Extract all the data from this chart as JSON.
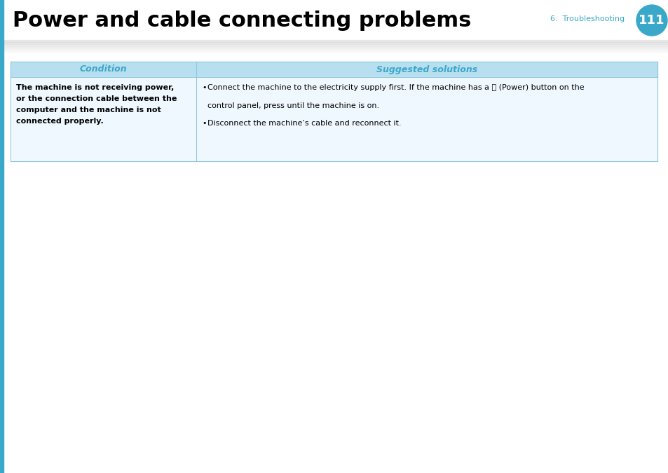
{
  "title": "Power and cable connecting problems",
  "page_number": "111",
  "section": "6.  Troubleshooting",
  "left_bar_color": "#3aa8c8",
  "title_color": "#000000",
  "section_color": "#3aa8c8",
  "circle_color": "#3aa8c8",
  "table_header_bg": "#b8dff0",
  "table_header_text_color": "#3aa8c8",
  "table_border_color": "#90c8e0",
  "col1_header": "Condition",
  "col2_header": "Suggested solutions",
  "condition_lines": [
    "The machine is not receiving power,",
    "or the connection cable between the",
    "computer and the machine is not",
    "connected properly."
  ],
  "sol1_pre_power": "Connect the machine to the electricity supply first. If the machine has a ",
  "sol1_power_sym": "⒣",
  "sol1_post_power": " (Power) button on the",
  "sol1_line2": "control panel, press until the machine is on.",
  "sol2": "Disconnect the machine’s cable and reconnect it.",
  "bg_color": "#ffffff",
  "fig_width": 9.54,
  "fig_height": 6.75,
  "dpi": 100
}
